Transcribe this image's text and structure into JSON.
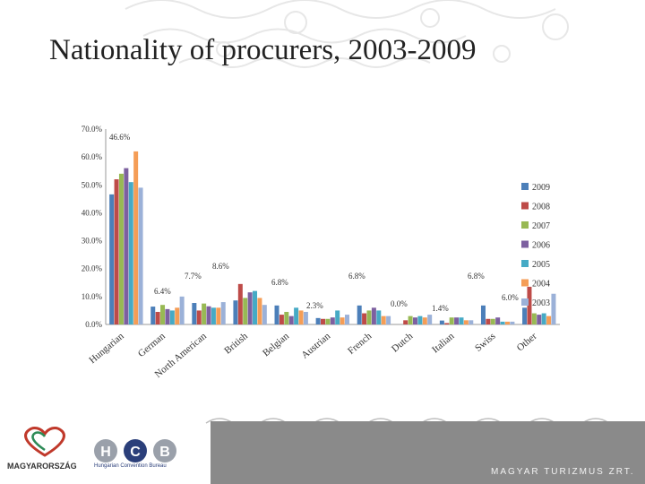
{
  "slide": {
    "title": "Nationality of procurers, 2003-2009"
  },
  "colors": {
    "2009": "#4c7fb9",
    "2008": "#be4b48",
    "2007": "#98b954",
    "2006": "#7d60a0",
    "2005": "#46aac5",
    "2004": "#f59d56",
    "2003": "#9bb1d8"
  },
  "chart_data": {
    "type": "bar",
    "title": "Nationality of procurers, 2003-2009",
    "categories": [
      "Hungarian",
      "German",
      "North American",
      "British",
      "Belgian",
      "Austrian",
      "French",
      "Dutch",
      "Italian",
      "Swiss",
      "Other"
    ],
    "ylim": [
      0,
      70
    ],
    "yticks": [
      "0.0%",
      "10.0%",
      "20.0%",
      "30.0%",
      "40.0%",
      "50.0%",
      "60.0%",
      "70.0%"
    ],
    "series": [
      {
        "name": "2009",
        "values": [
          46.6,
          6.4,
          7.7,
          8.6,
          6.8,
          2.3,
          6.8,
          0.0,
          1.4,
          6.8,
          6.0
        ]
      },
      {
        "name": "2008",
        "values": [
          52.0,
          4.5,
          5.0,
          14.5,
          3.5,
          2.0,
          4.0,
          1.5,
          0.5,
          2.0,
          13.5
        ]
      },
      {
        "name": "2007",
        "values": [
          54.0,
          7.0,
          7.5,
          9.5,
          4.5,
          2.0,
          5.0,
          3.0,
          2.5,
          2.0,
          4.0
        ]
      },
      {
        "name": "2006",
        "values": [
          56.0,
          5.5,
          6.5,
          11.5,
          3.0,
          2.5,
          6.0,
          2.5,
          2.5,
          2.5,
          3.5
        ]
      },
      {
        "name": "2005",
        "values": [
          51.0,
          5.0,
          6.0,
          12.0,
          6.0,
          5.0,
          5.0,
          3.0,
          2.5,
          1.0,
          4.0
        ]
      },
      {
        "name": "2004",
        "values": [
          62.0,
          6.0,
          6.0,
          9.5,
          5.0,
          2.5,
          3.0,
          2.5,
          1.5,
          1.0,
          3.0
        ]
      },
      {
        "name": "2003",
        "values": [
          49.0,
          10.0,
          8.0,
          7.0,
          4.5,
          3.5,
          3.0,
          3.5,
          1.5,
          1.0,
          11.0
        ]
      }
    ],
    "legend_order": [
      "2009",
      "2008",
      "2007",
      "2006",
      "2005",
      "2004",
      "2003"
    ],
    "legend_position": "right",
    "annotations": [
      "46.6%",
      "6.4%",
      "7.7%",
      "8.6%",
      "6.8%",
      "2.3%",
      "6.8%",
      "0.0%",
      "1.4%",
      "6.8%",
      "6.0%"
    ]
  },
  "footer": {
    "logo_text": "MAGYARORSZÁG",
    "hcb_letters": [
      "H",
      "C",
      "B"
    ],
    "hcb_subtitle": "Hungarian Convention Bureau",
    "brand": "MAGYAR TURIZMUS ZRT."
  }
}
